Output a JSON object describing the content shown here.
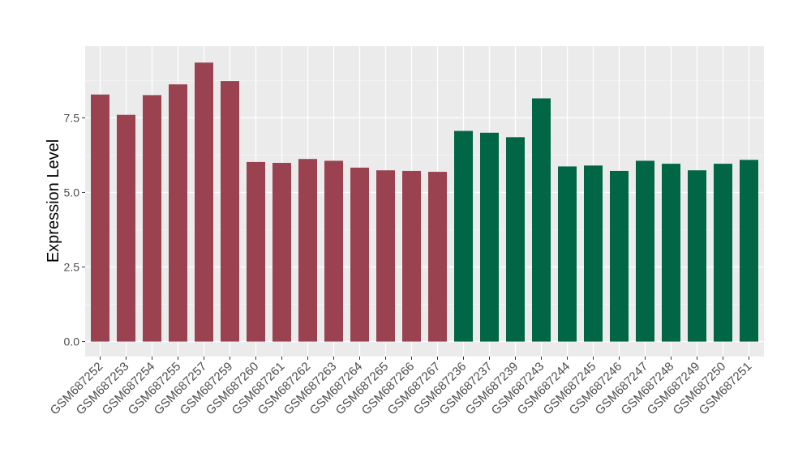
{
  "chart_data": {
    "type": "bar",
    "title": "",
    "xlabel": "",
    "ylabel": "Expression Level",
    "ylim": [
      -0.5,
      9.9
    ],
    "yticks": [
      0.0,
      2.5,
      5.0,
      7.5
    ],
    "ytick_labels": [
      "0.0",
      "2.5",
      "5.0",
      "7.5"
    ],
    "grid": true,
    "legend": "none",
    "categories": [
      "GSM687252",
      "GSM687253",
      "GSM687254",
      "GSM687255",
      "GSM687257",
      "GSM687259",
      "GSM687260",
      "GSM687261",
      "GSM687262",
      "GSM687263",
      "GSM687264",
      "GSM687265",
      "GSM687266",
      "GSM687267",
      "GSM687236",
      "GSM687237",
      "GSM687239",
      "GSM687243",
      "GSM687244",
      "GSM687245",
      "GSM687246",
      "GSM687247",
      "GSM687248",
      "GSM687249",
      "GSM687250",
      "GSM687251"
    ],
    "values": [
      8.28,
      7.6,
      8.26,
      8.62,
      9.35,
      8.73,
      6.02,
      5.99,
      6.12,
      6.06,
      5.83,
      5.74,
      5.72,
      5.69,
      7.06,
      7.0,
      6.85,
      8.15,
      5.87,
      5.9,
      5.72,
      6.06,
      5.96,
      5.74,
      5.96,
      6.09
    ],
    "bar_colors": [
      "#9b4250",
      "#9b4250",
      "#9b4250",
      "#9b4250",
      "#9b4250",
      "#9b4250",
      "#9b4250",
      "#9b4250",
      "#9b4250",
      "#9b4250",
      "#9b4250",
      "#9b4250",
      "#9b4250",
      "#9b4250",
      "#006645",
      "#006645",
      "#006645",
      "#006645",
      "#006645",
      "#006645",
      "#006645",
      "#006645",
      "#006645",
      "#006645",
      "#006645",
      "#006645"
    ],
    "colors": {
      "panel_background": "#ebebeb",
      "grid_major": "#ffffff",
      "grid_minor": "#f5f5f5",
      "tick_label": "#4d4d4d",
      "axis_title": "#000000"
    }
  }
}
